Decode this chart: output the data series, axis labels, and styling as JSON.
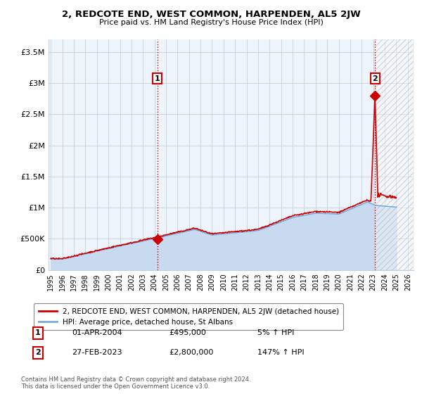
{
  "title": "2, REDCOTE END, WEST COMMON, HARPENDEN, AL5 2JW",
  "subtitle": "Price paid vs. HM Land Registry's House Price Index (HPI)",
  "hpi_color": "#7aaadd",
  "hpi_fill_color": "#c8daf0",
  "price_color": "#cc0000",
  "background_color": "#ffffff",
  "plot_bg_color": "#eef4fb",
  "grid_color": "#c0d0e0",
  "ylim": [
    0,
    3700000
  ],
  "yticks": [
    0,
    500000,
    1000000,
    1500000,
    2000000,
    2500000,
    3000000,
    3500000
  ],
  "ytick_labels": [
    "£0",
    "£500K",
    "£1M",
    "£1.5M",
    "£2M",
    "£2.5M",
    "£3M",
    "£3.5M"
  ],
  "legend_label_price": "2, REDCOTE END, WEST COMMON, HARPENDEN, AL5 2JW (detached house)",
  "legend_label_hpi": "HPI: Average price, detached house, St Albans",
  "transaction1_label": "1",
  "transaction1_date": "01-APR-2004",
  "transaction1_price": "£495,000",
  "transaction1_hpi": "5% ↑ HPI",
  "transaction2_label": "2",
  "transaction2_date": "27-FEB-2023",
  "transaction2_price": "£2,800,000",
  "transaction2_hpi": "147% ↑ HPI",
  "footnote": "Contains HM Land Registry data © Crown copyright and database right 2024.\nThis data is licensed under the Open Government Licence v3.0.",
  "marker1_x_year": 2004.25,
  "marker1_y": 495000,
  "marker2_x_year": 2023.15,
  "marker2_y": 2800000,
  "vline1_x": 2004.25,
  "vline2_x": 2023.15,
  "hatch_start_x": 2023.15,
  "xlim_start": 1994.8,
  "xlim_end": 2026.5
}
